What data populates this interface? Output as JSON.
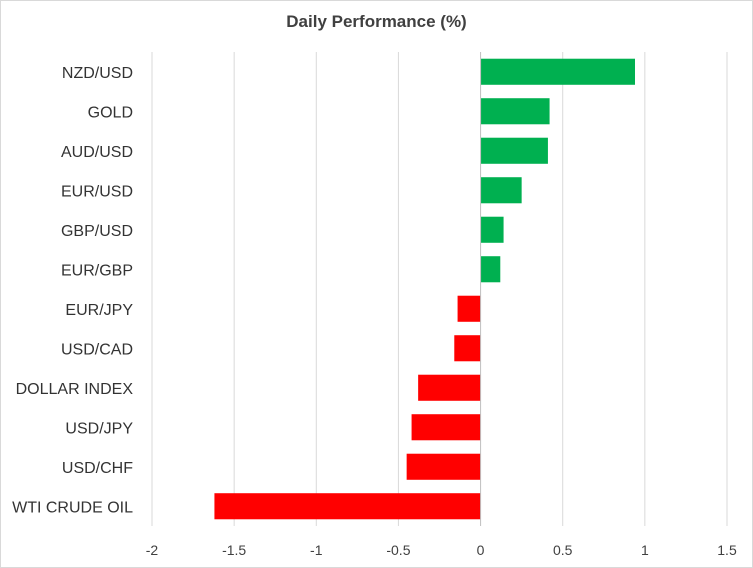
{
  "chart_data": {
    "type": "bar",
    "orientation": "horizontal",
    "title": "Daily Performance  (%)",
    "xlabel": "",
    "ylabel": "",
    "categories": [
      "NZD/USD",
      "GOLD",
      "AUD/USD",
      "EUR/USD",
      "GBP/USD",
      "EUR/GBP",
      "EUR/JPY",
      "USD/CAD",
      "DOLLAR INDEX",
      "USD/JPY",
      "USD/CHF",
      "WTI CRUDE OIL"
    ],
    "values": [
      0.94,
      0.42,
      0.41,
      0.25,
      0.14,
      0.12,
      -0.14,
      -0.16,
      -0.38,
      -0.42,
      -0.45,
      -1.62
    ],
    "xlim": [
      -2,
      1.5
    ],
    "xticks": [
      -2,
      -1.5,
      -1,
      -0.5,
      0,
      0.5,
      1,
      1.5
    ],
    "xtick_labels": [
      "-2",
      "-1.5",
      "-1",
      "-0.5",
      "0",
      "0.5",
      "1",
      "1.5"
    ],
    "grid": "vertical",
    "legend": "none",
    "colors": {
      "positive": "#00b050",
      "negative": "#ff0000",
      "grid": "#d9d9d9"
    }
  }
}
